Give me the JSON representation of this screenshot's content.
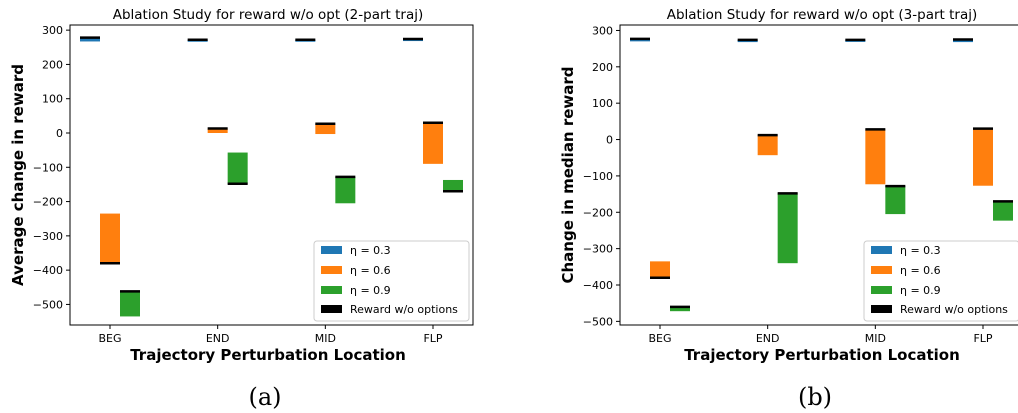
{
  "captions": [
    "(a)",
    "(b)"
  ],
  "colors": {
    "eta_0_3": "#1f77b4",
    "eta_0_6": "#ff7f0e",
    "eta_0_9": "#2ca02c",
    "baseline": "#000000"
  },
  "legend_labels": [
    "η = 0.3",
    "η = 0.6",
    "η = 0.9",
    "Reward w/o options"
  ],
  "chart_data": [
    {
      "type": "bar",
      "title": "Ablation Study for reward w/o opt (2-part traj)",
      "xlabel": "Trajectory Perturbation Location",
      "ylabel": "Average change in reward",
      "categories": [
        "BEG",
        "END",
        "MID",
        "FLP"
      ],
      "ylim": [
        -560,
        315
      ],
      "yticks": [
        300,
        200,
        100,
        0,
        -100,
        -200,
        -300,
        -400,
        -500
      ],
      "ytick_labels": [
        "300",
        "200",
        "100",
        "0",
        "−100",
        "−200",
        "−300",
        "−400",
        "−500"
      ],
      "legend_position": "lower right",
      "series": [
        {
          "name": "η = 0.3",
          "color": "#1f77b4",
          "baseline": [
            278,
            272,
            272,
            274
          ],
          "bottom": [
            267,
            272,
            272,
            274
          ]
        },
        {
          "name": "η = 0.6",
          "color": "#ff7f0e",
          "baseline": [
            -380,
            13,
            27,
            30
          ],
          "bottom": [
            -235,
            0,
            -3,
            -90
          ]
        },
        {
          "name": "η = 0.9",
          "color": "#2ca02c",
          "baseline": [
            -462,
            -148,
            -128,
            -170
          ],
          "bottom": [
            -535,
            -57,
            -205,
            -137
          ]
        }
      ]
    },
    {
      "type": "bar",
      "title": "Ablation Study for reward w/o opt (3-part traj)",
      "xlabel": "Trajectory Perturbation Location",
      "ylabel": "Change in median reward",
      "categories": [
        "BEG",
        "END",
        "MID",
        "FLP"
      ],
      "ylim": [
        -510,
        315
      ],
      "yticks": [
        300,
        200,
        100,
        0,
        -100,
        -200,
        -300,
        -400,
        -500
      ],
      "ytick_labels": [
        "300",
        "200",
        "100",
        "0",
        "−100",
        "−200",
        "−300",
        "−400",
        "−500"
      ],
      "legend_position": "lower right",
      "series": [
        {
          "name": "η = 0.3",
          "color": "#1f77b4",
          "baseline": [
            277,
            274,
            274,
            275
          ],
          "bottom": [
            270,
            268,
            270,
            268
          ]
        },
        {
          "name": "η = 0.6",
          "color": "#ff7f0e",
          "baseline": [
            -380,
            12,
            28,
            30
          ],
          "bottom": [
            -335,
            -43,
            -123,
            -127
          ]
        },
        {
          "name": "η = 0.9",
          "color": "#2ca02c",
          "baseline": [
            -460,
            -148,
            -128,
            -170
          ],
          "bottom": [
            -472,
            -340,
            -205,
            -223
          ]
        }
      ]
    }
  ]
}
